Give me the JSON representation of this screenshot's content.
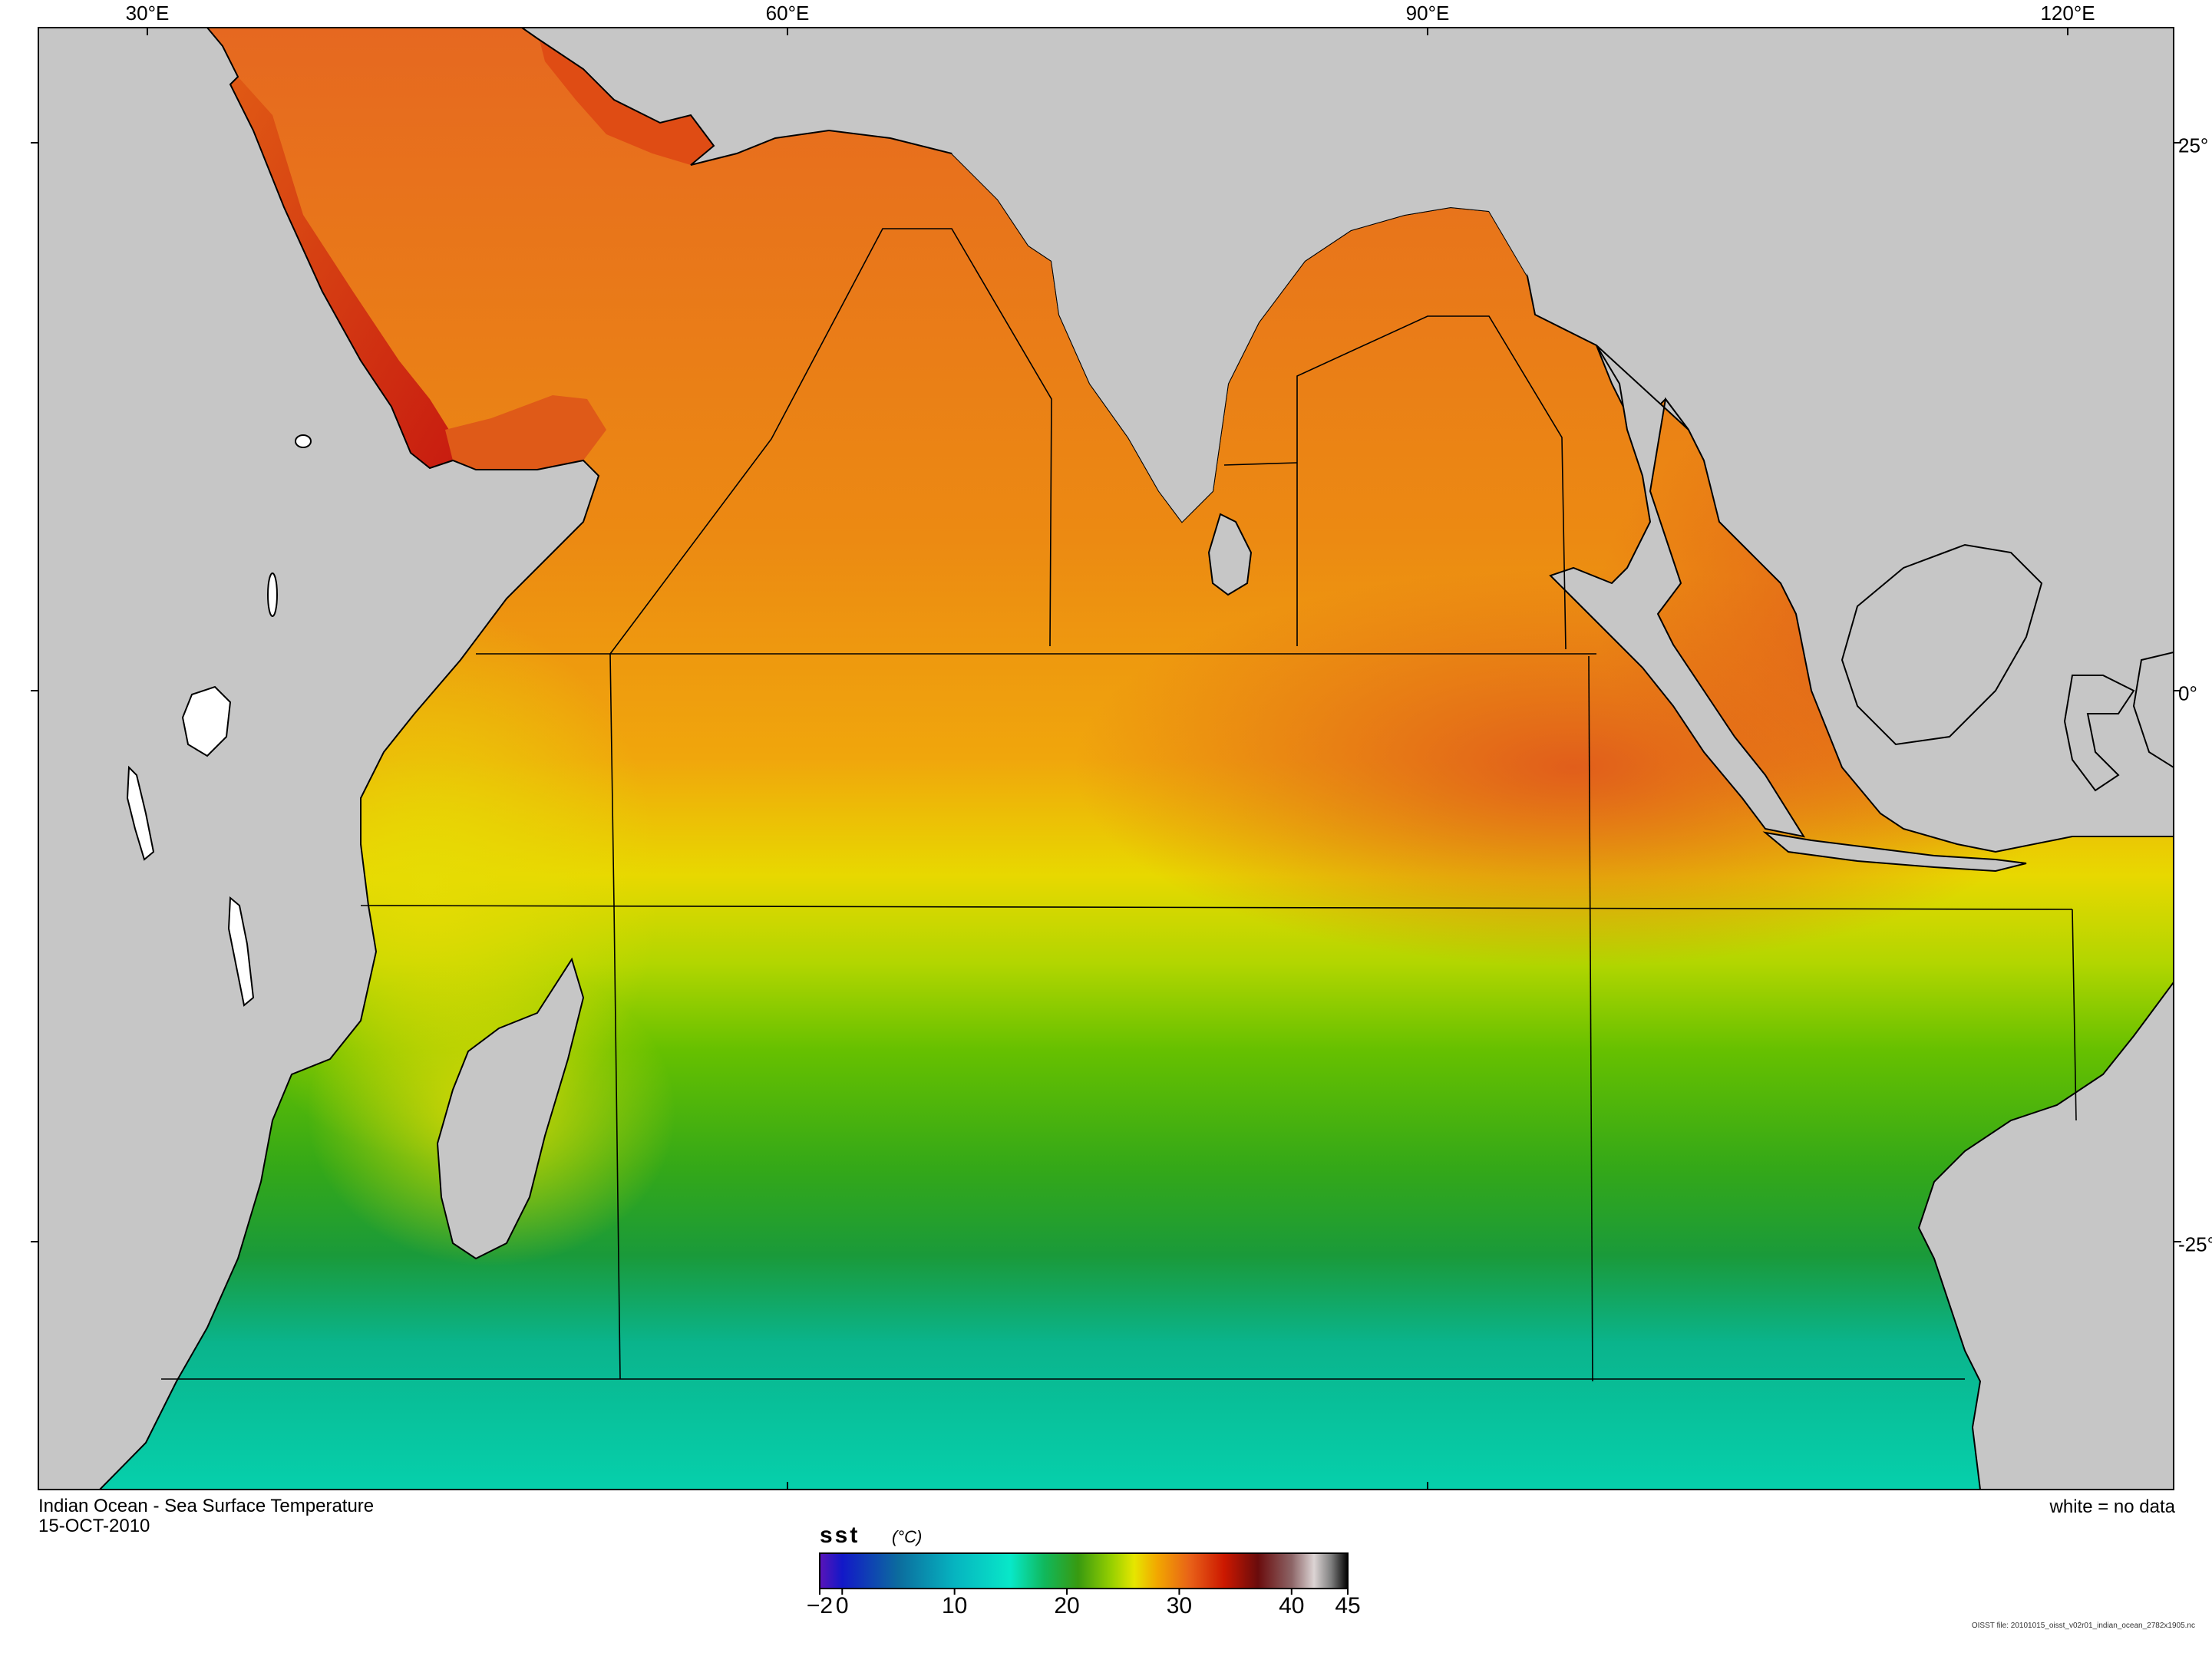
{
  "map": {
    "title": "Indian Ocean - Sea Surface Temperature",
    "date": "15-OCT-2010",
    "no_data_note": "white = no data",
    "file_note": "OISST file: 20101015_oisst_v02r01_indian_ocean_2782x1905.nc",
    "longitude_labels": [
      {
        "value": 30,
        "label": "30°E"
      },
      {
        "value": 60,
        "label": "60°E"
      },
      {
        "value": 90,
        "label": "90°E"
      },
      {
        "value": 120,
        "label": "120°E"
      }
    ],
    "latitude_labels": [
      {
        "value": 25,
        "label": "25°"
      },
      {
        "value": 0,
        "label": "0°"
      },
      {
        "value": -25,
        "label": "-25°"
      }
    ],
    "colors": {
      "land": "#c6c6c6",
      "coast": "#000000",
      "no_data": "#ffffff"
    }
  },
  "colorbar": {
    "variable": "sst",
    "unit": "(°C)",
    "ticks": [
      {
        "value": -2,
        "label": "−2"
      },
      {
        "value": 0,
        "label": "0"
      },
      {
        "value": 10,
        "label": "10"
      },
      {
        "value": 20,
        "label": "20"
      },
      {
        "value": 30,
        "label": "30"
      },
      {
        "value": 40,
        "label": "40"
      },
      {
        "value": 45,
        "label": "45"
      }
    ],
    "range": [
      -2,
      45
    ],
    "stops": [
      {
        "value": -2,
        "color": "#5a14b8"
      },
      {
        "value": 0,
        "color": "#1218c8"
      },
      {
        "value": 5,
        "color": "#0c6c9e"
      },
      {
        "value": 10,
        "color": "#06b4c0"
      },
      {
        "value": 15,
        "color": "#08e8c8"
      },
      {
        "value": 18,
        "color": "#10b85c"
      },
      {
        "value": 21,
        "color": "#389a10"
      },
      {
        "value": 24,
        "color": "#98d000"
      },
      {
        "value": 26,
        "color": "#e6e600"
      },
      {
        "value": 28,
        "color": "#f2a800"
      },
      {
        "value": 31,
        "color": "#e86018"
      },
      {
        "value": 34,
        "color": "#cc1800"
      },
      {
        "value": 37,
        "color": "#6a0c0c"
      },
      {
        "value": 40,
        "color": "#8c6466"
      },
      {
        "value": 42,
        "color": "#dcd4d4"
      },
      {
        "value": 43.5,
        "color": "#808080"
      },
      {
        "value": 45,
        "color": "#000000"
      }
    ]
  }
}
